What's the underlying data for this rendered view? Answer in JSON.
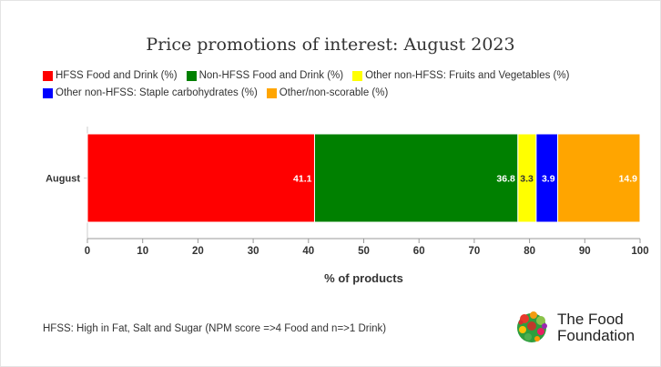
{
  "chart_data": {
    "type": "bar",
    "orientation": "horizontal",
    "stacked": true,
    "title": "Price promotions of interest: August 2023",
    "categories": [
      "August"
    ],
    "series": [
      {
        "name": "HFSS Food and Drink (%)",
        "values": [
          41.1
        ],
        "color": "#ff0000"
      },
      {
        "name": "Non-HFSS Food and Drink (%)",
        "values": [
          36.8
        ],
        "color": "#008000"
      },
      {
        "name": "Other non-HFSS: Fruits and Vegetables (%)",
        "values": [
          3.3
        ],
        "color": "#ffff00"
      },
      {
        "name": "Other non-HFSS: Staple carbohydrates (%)",
        "values": [
          3.9
        ],
        "color": "#0000ff"
      },
      {
        "name": "Other/non-scorable (%)",
        "values": [
          14.9
        ],
        "color": "#ffa500"
      }
    ],
    "xlabel": "% of products",
    "xlim": [
      0,
      100
    ],
    "xticks": [
      "0",
      "10",
      "20",
      "30",
      "40",
      "50",
      "60",
      "70",
      "80",
      "90",
      "100"
    ],
    "data_labels": [
      "41.1",
      "36.8",
      "3.3",
      "3.9",
      "14.9"
    ],
    "legend_position": "top-left",
    "grid": false
  },
  "footnote": "HFSS: High in Fat, Salt and Sugar (NPM score =>4 Food and n=>1 Drink)",
  "logo": {
    "line1": "The Food",
    "line2": "Foundation"
  }
}
